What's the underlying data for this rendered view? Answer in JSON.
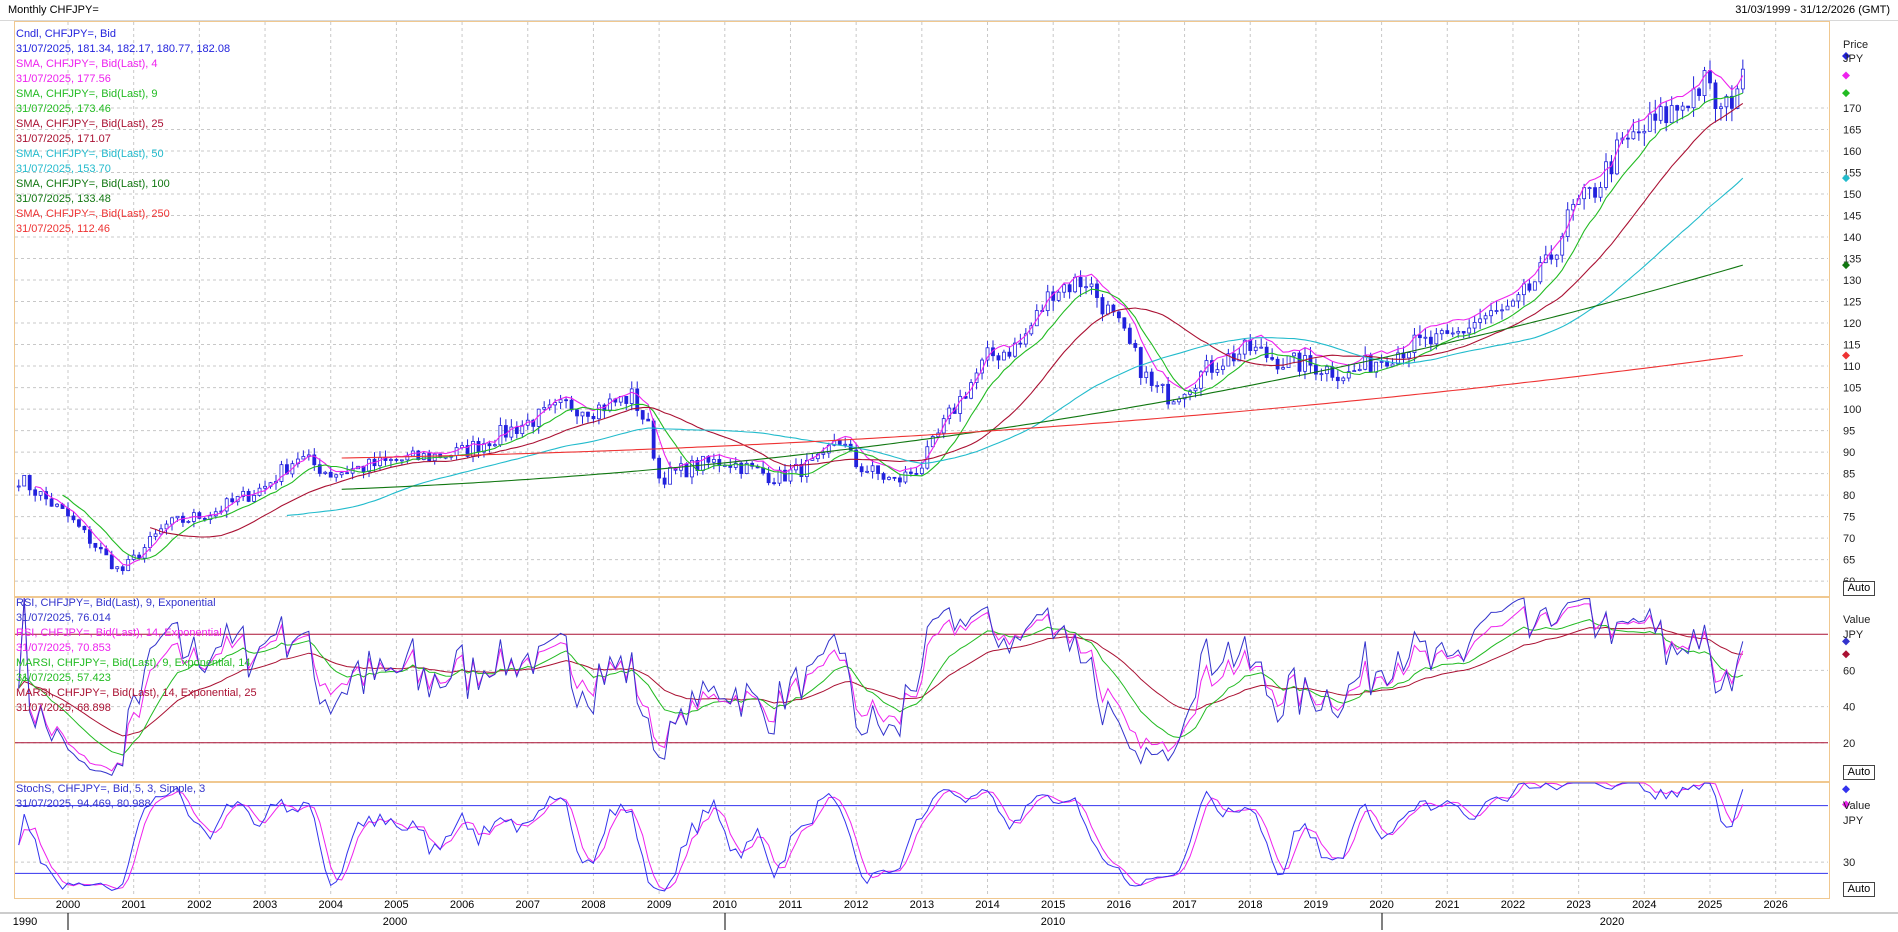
{
  "header": {
    "title": "Monthly CHFJPY=",
    "range": "31/03/1999 - 31/12/2026 (GMT)"
  },
  "colors": {
    "candle": "#2222dd",
    "sma4": "#ee22ee",
    "sma9": "#22bb22",
    "sma25": "#aa1133",
    "sma50": "#22bbcc",
    "sma100": "#117711",
    "sma250": "#ee3333",
    "rsi9": "#3333cc",
    "rsi14": "#ee22ee",
    "marsi9": "#22bb22",
    "marsi14": "#aa1133",
    "stochK": "#3333ee",
    "stochD": "#ee22ee",
    "refline": "#aa1133",
    "stochref": "#3333ee"
  },
  "legend_price": [
    {
      "label": "Cndl, CHFJPY=, Bid",
      "value": "31/07/2025, 181.34, 182.17, 180.77, 182.08",
      "color": "#2222dd"
    },
    {
      "label": "SMA, CHFJPY=, Bid(Last), 4",
      "value": "31/07/2025, 177.56",
      "color": "#ee22ee"
    },
    {
      "label": "SMA, CHFJPY=, Bid(Last), 9",
      "value": "31/07/2025, 173.46",
      "color": "#22bb22"
    },
    {
      "label": "SMA, CHFJPY=, Bid(Last), 25",
      "value": "31/07/2025, 171.07",
      "color": "#aa1133"
    },
    {
      "label": "SMA, CHFJPY=, Bid(Last), 50",
      "value": "31/07/2025, 153.70",
      "color": "#22bbcc"
    },
    {
      "label": "SMA, CHFJPY=, Bid(Last), 100",
      "value": "31/07/2025, 133.48",
      "color": "#117711"
    },
    {
      "label": "SMA, CHFJPY=, Bid(Last), 250",
      "value": "31/07/2025, 112.46",
      "color": "#ee3333"
    }
  ],
  "legend_rsi": [
    {
      "label": "RSI, CHFJPY=, Bid(Last), 9, Exponential",
      "value": "31/07/2025, 76.014",
      "color": "#3333cc"
    },
    {
      "label": "RSI, CHFJPY=, Bid(Last), 14, Exponential",
      "value": "31/07/2025, 70.853",
      "color": "#ee22ee"
    },
    {
      "label": "MARSI, CHFJPY=, Bid(Last), 9, Exponential, 14",
      "value": "31/07/2025, 57.423",
      "color": "#22bb22"
    },
    {
      "label": "MARSI, CHFJPY=, Bid(Last), 14, Exponential, 25",
      "value": "31/07/2025, 68.898",
      "color": "#aa1133"
    }
  ],
  "legend_stoch": [
    {
      "label": "StochS, CHFJPY=, Bid, 5, 3, Simple, 3",
      "value": "31/07/2025, 94.469, 80.988",
      "color": "#3333cc"
    }
  ],
  "side": {
    "price_title": "Price",
    "price_unit": "JPY",
    "rsi_title": "Value",
    "rsi_unit": "JPY",
    "stoch_title": "Value",
    "stoch_unit": "JPY",
    "auto": "Auto"
  },
  "chart_data": [
    {
      "type": "line",
      "panel": "price",
      "ylim": [
        57,
        190
      ],
      "y_ticks": [
        60,
        65,
        70,
        75,
        80,
        85,
        90,
        95,
        100,
        105,
        110,
        115,
        120,
        125,
        130,
        135,
        140,
        145,
        150,
        155,
        160,
        165,
        170
      ],
      "x_ticks": [
        "2000",
        "2001",
        "2002",
        "2003",
        "2004",
        "2005",
        "2006",
        "2007",
        "2008",
        "2009",
        "2010",
        "2011",
        "2012",
        "2013",
        "2014",
        "2015",
        "2016",
        "2017",
        "2018",
        "2019",
        "2020",
        "2021",
        "2022",
        "2023",
        "2024",
        "2025",
        "2026"
      ],
      "x_decades": [
        "1990",
        "2000",
        "2010",
        "2020"
      ],
      "grid": true,
      "close_anchors": {
        "x": [
          1999.25,
          2000.0,
          2000.8,
          2001.5,
          2002.2,
          2003.0,
          2003.5,
          2004.0,
          2005.0,
          2006.0,
          2007.0,
          2007.6,
          2008.0,
          2008.6,
          2008.85,
          2009.0,
          2009.6,
          2010.0,
          2010.8,
          2011.5,
          2011.7,
          2012.0,
          2012.6,
          2013.0,
          2013.4,
          2014.0,
          2014.5,
          2015.0,
          2015.5,
          2016.0,
          2016.5,
          2016.8,
          2017.5,
          2018.0,
          2018.5,
          2019.0,
          2019.5,
          2020.0,
          2020.5,
          2021.0,
          2021.5,
          2022.0,
          2022.5,
          2022.9,
          2023.2,
          2023.6,
          2024.0,
          2024.5,
          2024.9,
          2025.2,
          2025.583
        ],
        "y": [
          84,
          75,
          62,
          73,
          76,
          82,
          89,
          85,
          88,
          90,
          97,
          101,
          100,
          103,
          95,
          84,
          87,
          88,
          84,
          88,
          94,
          87,
          83,
          87,
          98,
          112,
          115,
          128,
          130,
          119,
          105,
          103,
          111,
          114,
          111,
          110,
          108,
          112,
          115,
          116,
          121,
          123,
          133,
          146,
          150,
          160,
          165,
          170,
          176,
          168,
          182.08
        ]
      },
      "series": [
        {
          "name": "Cndl, CHFJPY=, Bid",
          "type": "candle",
          "last": [
            181.34,
            182.17,
            180.77,
            182.08
          ]
        },
        {
          "name": "SMA, CHFJPY=, Bid(Last), 4",
          "period": 4,
          "last": 177.56
        },
        {
          "name": "SMA, CHFJPY=, Bid(Last), 9",
          "period": 9,
          "last": 173.46
        },
        {
          "name": "SMA, CHFJPY=, Bid(Last), 25",
          "period": 25,
          "last": 171.07
        },
        {
          "name": "SMA, CHFJPY=, Bid(Last), 50",
          "period": 50,
          "last": 153.7
        },
        {
          "name": "SMA, CHFJPY=, Bid(Last), 100",
          "period": 100,
          "last": 133.48
        },
        {
          "name": "SMA, CHFJPY=, Bid(Last), 250",
          "period": 250,
          "last": 112.46
        }
      ]
    },
    {
      "type": "line",
      "panel": "rsi",
      "ylim": [
        0,
        100
      ],
      "y_ticks": [
        20,
        40,
        60
      ],
      "ref_lines": [
        20,
        80
      ],
      "series": [
        {
          "name": "RSI, CHFJPY=, Bid(Last), 9, Exponential",
          "last": 76.014
        },
        {
          "name": "RSI, CHFJPY=, Bid(Last), 14, Exponential",
          "last": 70.853
        },
        {
          "name": "MARSI, CHFJPY=, Bid(Last), 9, Exponential, 14",
          "last": 57.423
        },
        {
          "name": "MARSI, CHFJPY=, Bid(Last), 14, Exponential, 25",
          "last": 68.898
        }
      ]
    },
    {
      "type": "line",
      "panel": "stoch",
      "ylim": [
        0,
        100
      ],
      "y_ticks": [
        30
      ],
      "ref_lines": [
        20,
        80
      ],
      "series": [
        {
          "name": "StochS, CHFJPY=, Bid, 5, 3, Simple, 3",
          "last": [
            94.469,
            80.988
          ]
        }
      ]
    }
  ]
}
